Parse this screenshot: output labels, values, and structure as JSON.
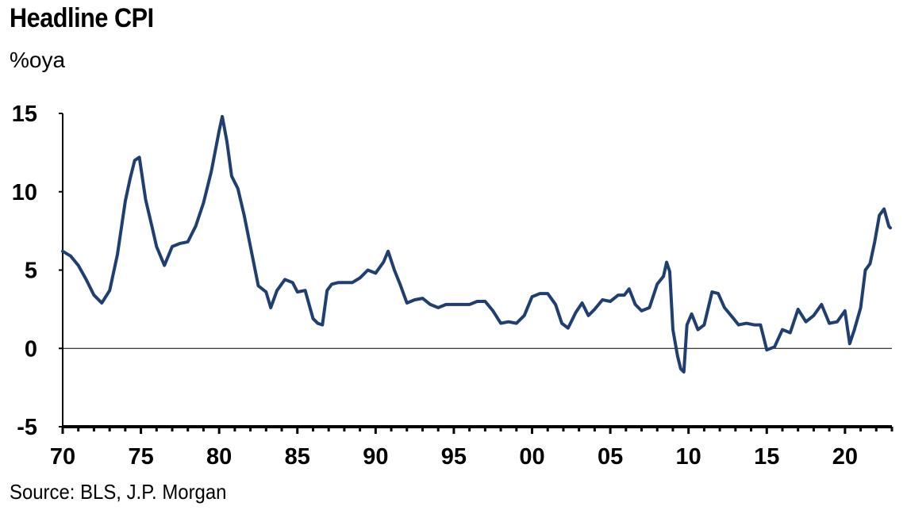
{
  "header": {
    "title": "Headline CPI",
    "subtitle": "%oya"
  },
  "footer": {
    "source": "Source: BLS, J.P. Morgan"
  },
  "colors": {
    "series": "#1F3F73",
    "axis": "#000000"
  },
  "chart_data": {
    "type": "line",
    "title": "Headline CPI",
    "ylabel": "%oya",
    "xlabel": "",
    "ylim": [
      -5,
      15
    ],
    "xlim": [
      1970,
      2023
    ],
    "yticks": [
      15,
      10,
      5,
      0,
      -5
    ],
    "xtick_labels": [
      "70",
      "75",
      "80",
      "85",
      "90",
      "95",
      "00",
      "05",
      "10",
      "15",
      "20"
    ],
    "xtick_years": [
      1970,
      1975,
      1980,
      1985,
      1990,
      1995,
      2000,
      2005,
      2010,
      2015,
      2020
    ],
    "zero_line": true,
    "grid": false,
    "series": [
      {
        "x": [
          1970.0,
          1970.5,
          1971.0,
          1971.5,
          1972.0,
          1972.5,
          1973.0,
          1973.5,
          1974.0,
          1974.3,
          1974.6,
          1974.9,
          1975.3,
          1975.7,
          1976.0,
          1976.5,
          1977.0,
          1977.5,
          1978.0,
          1978.5,
          1979.0,
          1979.5,
          1980.0,
          1980.2,
          1980.5,
          1980.8,
          1981.2,
          1981.6,
          1982.0,
          1982.5,
          1983.0,
          1983.3,
          1983.7,
          1984.2,
          1984.7,
          1985.0,
          1985.5,
          1986.0,
          1986.3,
          1986.6,
          1986.9,
          1987.2,
          1987.6,
          1988.0,
          1988.5,
          1989.0,
          1989.5,
          1990.0,
          1990.5,
          1990.8,
          1991.2,
          1991.6,
          1992.0,
          1992.5,
          1993.0,
          1993.5,
          1994.0,
          1994.5,
          1995.0,
          1995.5,
          1996.0,
          1996.5,
          1997.0,
          1997.5,
          1998.0,
          1998.5,
          1999.0,
          1999.5,
          2000.0,
          2000.5,
          2001.0,
          2001.5,
          2001.9,
          2002.3,
          2002.8,
          2003.2,
          2003.6,
          2004.0,
          2004.5,
          2005.0,
          2005.5,
          2005.9,
          2006.2,
          2006.6,
          2007.0,
          2007.5,
          2008.0,
          2008.4,
          2008.6,
          2008.8,
          2009.0,
          2009.3,
          2009.5,
          2009.7,
          2009.9,
          2010.2,
          2010.6,
          2011.0,
          2011.5,
          2011.9,
          2012.3,
          2012.8,
          2013.2,
          2013.7,
          2014.2,
          2014.6,
          2015.0,
          2015.5,
          2016.0,
          2016.5,
          2017.0,
          2017.5,
          2018.0,
          2018.5,
          2019.0,
          2019.5,
          2020.0,
          2020.3,
          2020.6,
          2021.0,
          2021.3,
          2021.6,
          2021.9,
          2022.2,
          2022.5,
          2022.8,
          2022.9
        ],
        "y": [
          6.2,
          5.9,
          5.3,
          4.4,
          3.4,
          2.9,
          3.7,
          6.0,
          9.4,
          10.8,
          12.0,
          12.2,
          9.5,
          7.8,
          6.5,
          5.3,
          6.5,
          6.7,
          6.8,
          7.8,
          9.3,
          11.3,
          13.9,
          14.8,
          13.2,
          11.0,
          10.2,
          8.5,
          6.5,
          4.0,
          3.6,
          2.6,
          3.7,
          4.4,
          4.2,
          3.6,
          3.7,
          1.9,
          1.6,
          1.5,
          3.7,
          4.1,
          4.2,
          4.2,
          4.2,
          4.5,
          5.0,
          4.8,
          5.5,
          6.2,
          5.0,
          4.0,
          2.9,
          3.1,
          3.2,
          2.8,
          2.6,
          2.8,
          2.8,
          2.8,
          2.8,
          3.0,
          3.0,
          2.4,
          1.6,
          1.7,
          1.6,
          2.1,
          3.3,
          3.5,
          3.5,
          2.8,
          1.6,
          1.3,
          2.3,
          2.9,
          2.1,
          2.5,
          3.1,
          3.0,
          3.4,
          3.4,
          3.8,
          2.8,
          2.4,
          2.6,
          4.1,
          4.6,
          5.5,
          4.9,
          1.2,
          -0.5,
          -1.3,
          -1.5,
          1.5,
          2.2,
          1.2,
          1.5,
          3.6,
          3.5,
          2.6,
          2.0,
          1.5,
          1.6,
          1.5,
          1.5,
          -0.1,
          0.1,
          1.2,
          1.0,
          2.5,
          1.7,
          2.1,
          2.8,
          1.6,
          1.7,
          2.4,
          0.3,
          1.2,
          2.6,
          5.0,
          5.4,
          6.8,
          8.5,
          8.9,
          7.8,
          7.7
        ]
      }
    ]
  }
}
